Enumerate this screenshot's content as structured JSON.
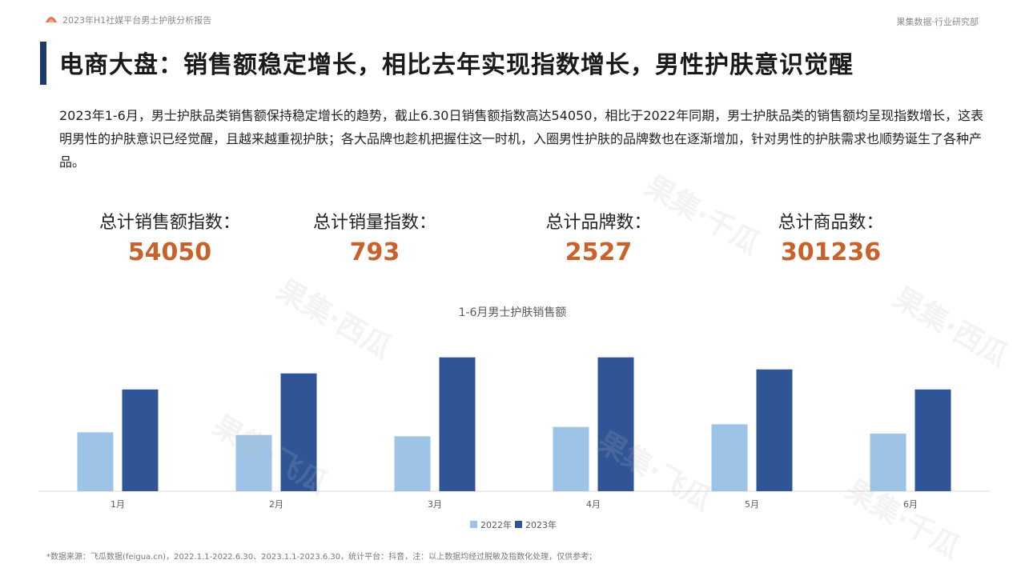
{
  "header": {
    "report_name": "2023年H1社媒平台男士护肤分析报告",
    "org_name": "果集数据·行业研究部"
  },
  "title": "电商大盘：销售额稳定增长，相比去年实现指数增长，男性护肤意识觉醒",
  "intro": "2023年1-6月，男士护肤品类销售额保持稳定增长的趋势，截止6.30日销售额指数高达54050，相比于2022年同期，男士护肤品类的销售额均呈现指数增长，这表明男性的护肤意识已经觉醒，且越来越重视护肤；各大品牌也趁机把握住这一时机，入圈男性护肤的品牌数也在逐渐增加，针对男性的护肤需求也顺势诞生了各种产品。",
  "stats": [
    {
      "label": "总计销售额指数：",
      "value": "54050"
    },
    {
      "label": "总计销量指数：",
      "value": "793"
    },
    {
      "label": "总计品牌数：",
      "value": "2527"
    },
    {
      "label": "总计商品数：",
      "value": "301236"
    }
  ],
  "watermarks": [
    "果集·西瓜",
    "果集·飞瓜",
    "果集·千瓜",
    "果集·西瓜",
    "果集·飞瓜",
    "果集·千瓜"
  ],
  "chart_data": {
    "type": "bar",
    "title": "1-6月男士护肤销售额",
    "categories": [
      "1月",
      "2月",
      "3月",
      "4月",
      "5月",
      "6月"
    ],
    "series": [
      {
        "name": "2022年",
        "values": [
          2200,
          2100,
          2050,
          2400,
          2500,
          2150
        ],
        "color": "#9dc3e6"
      },
      {
        "name": "2023年",
        "values": [
          3800,
          4400,
          5000,
          5000,
          4550,
          3800
        ],
        "color": "#2f5597"
      }
    ],
    "ylim": [
      0,
      5200
    ],
    "grid": false,
    "legend": "bottom"
  },
  "footnote": "*数据来源：飞瓜数据(feigua.cn)，2022.1.1-2022.6.30、2023.1.1-2023.6.30，统计平台：抖音，注：以上数据均经过脱敏及指数化处理，仅供参考；"
}
